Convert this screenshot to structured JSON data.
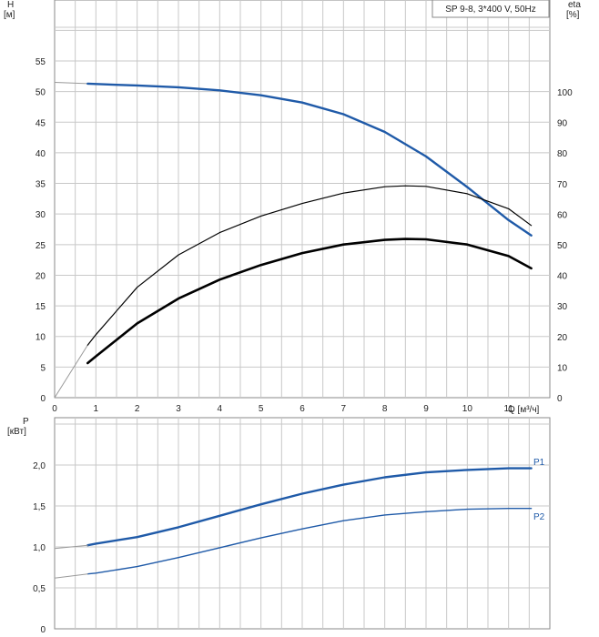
{
  "chart_data": [
    {
      "type": "line",
      "title": "SP 9-8, 3*400 V, 50Hz",
      "xlabel": "Q [м³/ч]",
      "ylabel": "H\n[м]",
      "y2label": "eta\n[%]",
      "xlim": [
        0,
        12
      ],
      "ylim": [
        0,
        60
      ],
      "y2lim": [
        0,
        120
      ],
      "x_ticks": [
        0,
        1,
        2,
        3,
        4,
        5,
        6,
        7,
        8,
        9,
        10,
        11
      ],
      "y_ticks": [
        0,
        5,
        10,
        15,
        20,
        25,
        30,
        35,
        40,
        45,
        50,
        55
      ],
      "y2_ticks": [
        0,
        10,
        20,
        30,
        40,
        50,
        60,
        70,
        80,
        90,
        100
      ],
      "grid": true,
      "colors": {
        "head": "#1f5aa8",
        "eta": "#000000",
        "extension": "#9a9a9a"
      },
      "series": [
        {
          "axis": "left",
          "x": [
            0,
            0.8
          ],
          "values": [
            51.5,
            51.3
          ]
        },
        {
          "axis": "left",
          "x": [
            0.8,
            1.5,
            2,
            3,
            4,
            5,
            6,
            7,
            8,
            9,
            10,
            11,
            11.55
          ],
          "values": [
            51.3,
            51.1,
            51.0,
            50.7,
            50.2,
            49.4,
            48.2,
            46.3,
            43.4,
            39.4,
            34.4,
            29.0,
            26.5
          ]
        },
        {
          "axis": "right",
          "x": [
            0,
            0.8
          ],
          "values": [
            0,
            17.2
          ]
        },
        {
          "axis": "right",
          "x": [
            0.8,
            1,
            2,
            3,
            4,
            5,
            6,
            7,
            8,
            8.5,
            9,
            10,
            11,
            11.55
          ],
          "values": [
            17.2,
            20.6,
            36.1,
            46.7,
            54.0,
            59.4,
            63.5,
            66.9,
            69.0,
            69.3,
            69.1,
            66.7,
            61.8,
            56.3
          ]
        },
        {
          "axis": "right",
          "x": [
            0.8,
            1,
            2,
            3,
            4,
            5,
            6,
            7,
            8,
            8.5,
            9,
            10,
            11,
            11.55
          ],
          "values": [
            11.3,
            13.5,
            24.3,
            32.4,
            38.6,
            43.4,
            47.3,
            50.1,
            51.6,
            51.9,
            51.8,
            50.1,
            46.3,
            42.3
          ]
        }
      ]
    },
    {
      "type": "line",
      "ylabel": "P\n[кВт]",
      "xlim": [
        0,
        12
      ],
      "ylim": [
        0,
        2.5
      ],
      "y_ticks": [
        "0",
        "0,5",
        "1,0",
        "1,5",
        "2,0"
      ],
      "y_tick_values": [
        0,
        0.5,
        1.0,
        1.5,
        2.0
      ],
      "grid": true,
      "colors": {
        "power": "#1f5aa8",
        "extension": "#9a9a9a"
      },
      "series": [
        {
          "name": "P1",
          "x": [
            0.8,
            1,
            2,
            3,
            4,
            5,
            6,
            7,
            8,
            9,
            10,
            11,
            11.55
          ],
          "values": [
            1.02,
            1.04,
            1.12,
            1.24,
            1.38,
            1.52,
            1.65,
            1.76,
            1.85,
            1.91,
            1.94,
            1.96,
            1.96
          ]
        },
        {
          "x": [
            0,
            0.8
          ],
          "values": [
            0.98,
            1.02
          ]
        },
        {
          "name": "P2",
          "x": [
            0.8,
            1,
            2,
            3,
            4,
            5,
            6,
            7,
            8,
            9,
            10,
            11,
            11.55
          ],
          "values": [
            0.67,
            0.68,
            0.76,
            0.87,
            0.99,
            1.11,
            1.22,
            1.32,
            1.39,
            1.43,
            1.46,
            1.47,
            1.47
          ]
        },
        {
          "x": [
            0,
            0.8
          ],
          "values": [
            0.62,
            0.67
          ]
        }
      ]
    }
  ]
}
